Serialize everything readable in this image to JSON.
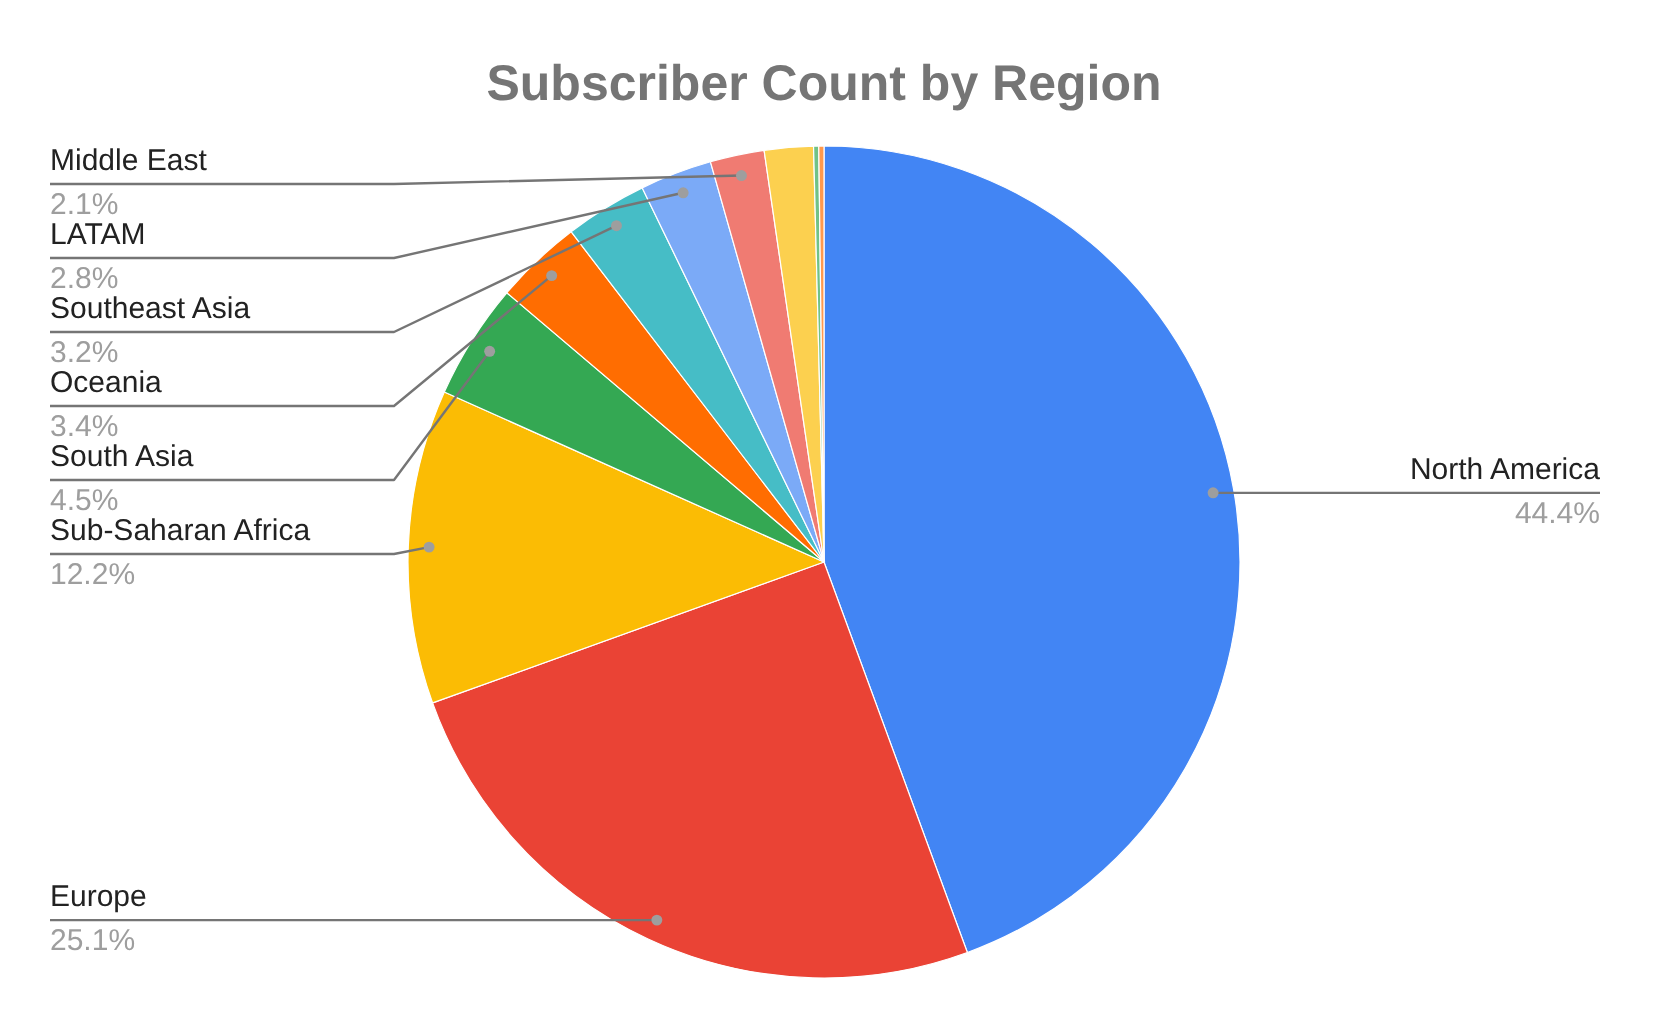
{
  "chart_data": {
    "type": "pie",
    "title": "Subscriber Count by Region",
    "categories": [
      "North America",
      "Europe",
      "Sub-Saharan Africa",
      "South Asia",
      "Oceania",
      "Southeast Asia",
      "LATAM",
      "Middle East",
      null,
      null,
      null
    ],
    "values": [
      44.4,
      25.1,
      12.2,
      4.5,
      3.4,
      3.2,
      2.8,
      2.1,
      1.9,
      0.2,
      0.2
    ],
    "value_labels": [
      "44.4%",
      "25.1%",
      "12.2%",
      "4.5%",
      "3.4%",
      "3.2%",
      "2.8%",
      "2.1%",
      null,
      null,
      null
    ],
    "colors": [
      "#4285f4",
      "#ea4335",
      "#fbbc04",
      "#34a853",
      "#ff6d01",
      "#46bdc6",
      "#7baaf7",
      "#f07b72",
      "#fcd04f",
      "#71c287",
      "#ff994d"
    ]
  }
}
